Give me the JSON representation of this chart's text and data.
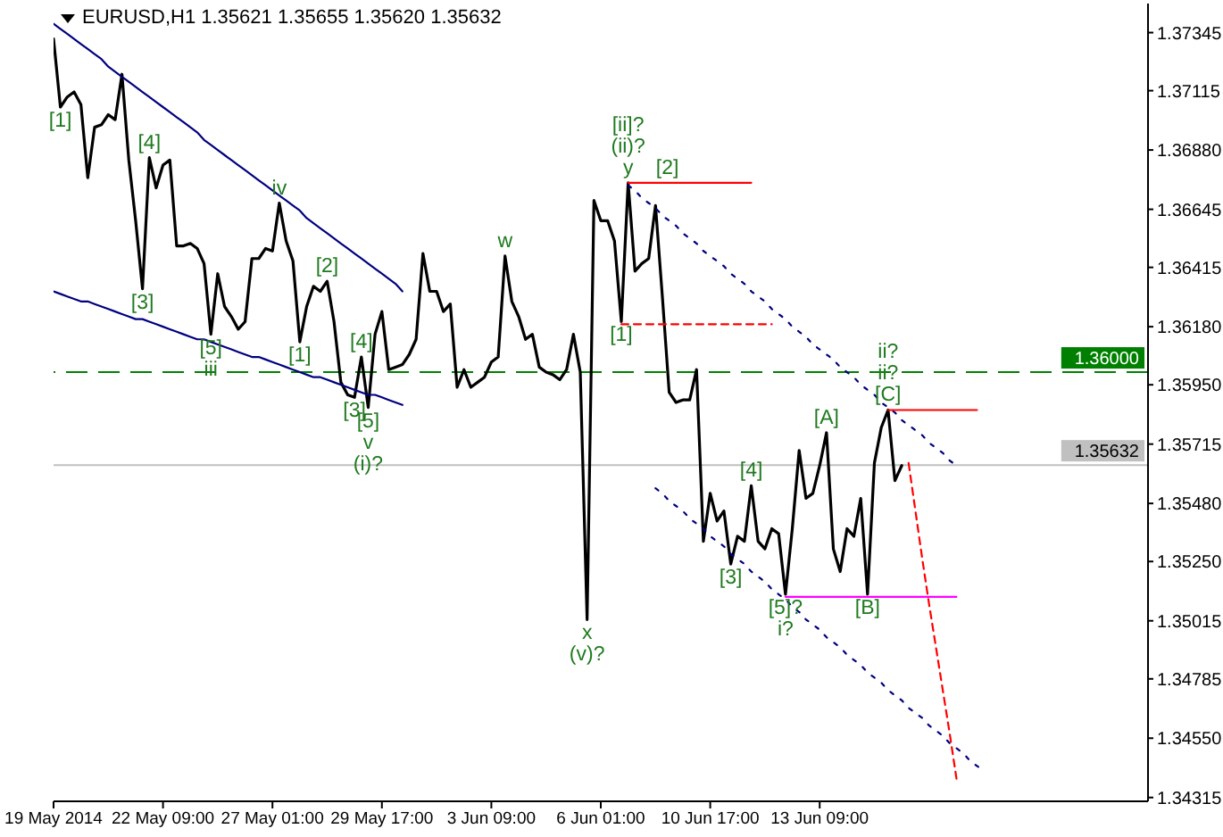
{
  "chart_data": {
    "type": "line",
    "title": "EURUSD,H1 1.35621 1.35655 1.35620 1.35632",
    "categories": [
      "19 May 2014",
      null,
      null,
      null,
      null,
      null,
      null,
      null,
      null,
      null,
      null,
      null,
      null,
      null,
      null,
      null,
      "22 May 09:00",
      null,
      null,
      null,
      null,
      null,
      null,
      null,
      null,
      null,
      null,
      null,
      null,
      null,
      null,
      null,
      "27 May 01:00",
      null,
      null,
      null,
      null,
      null,
      null,
      null,
      null,
      null,
      null,
      null,
      null,
      null,
      null,
      null,
      "29 May 17:00",
      null,
      null,
      null,
      null,
      null,
      null,
      null,
      null,
      null,
      null,
      null,
      null,
      null,
      null,
      null,
      "3 Jun 09:00",
      null,
      null,
      null,
      null,
      null,
      null,
      null,
      null,
      null,
      null,
      null,
      null,
      null,
      null,
      null,
      "6 Jun 01:00",
      null,
      null,
      null,
      null,
      null,
      null,
      null,
      null,
      null,
      null,
      null,
      null,
      null,
      null,
      null,
      "10 Jun 17:00",
      null,
      null,
      null,
      null,
      null,
      null,
      null,
      null,
      null,
      null,
      null,
      null,
      null,
      null,
      null,
      "13 Jun 09:00",
      null,
      null,
      null,
      null,
      null,
      null,
      null,
      null,
      null,
      null,
      null,
      null,
      null,
      null,
      null,
      null,
      null,
      null,
      null,
      null,
      null,
      null,
      null,
      null,
      null,
      null,
      null,
      null,
      null,
      null,
      null,
      null,
      null,
      null,
      null,
      null,
      null,
      null,
      null,
      null,
      null,
      null,
      null,
      null,
      null,
      null,
      null,
      null
    ],
    "ylim": [
      1.343,
      1.3746
    ],
    "yticks": [
      1.37345,
      1.37115,
      {
        "value": 1.3688,
        "label": "1.36880"
      },
      1.36645,
      1.36415,
      {
        "value": 1.3618,
        "label": "1.36180"
      },
      {
        "value": 1.3595,
        "label": "1.35950"
      },
      1.35715,
      {
        "value": 1.3548,
        "label": "1.35480"
      },
      {
        "value": 1.3525,
        "label": "1.35250"
      },
      1.35015,
      1.34785,
      {
        "value": 1.3455,
        "label": "1.34550"
      },
      1.34315
    ],
    "series": [
      {
        "color": "#000000",
        "values": [
          1.3732,
          1.3705,
          1.3709,
          1.3711,
          1.3706,
          1.3677,
          1.3697,
          1.3698,
          1.3702,
          1.37,
          1.3718,
          1.3684,
          1.366,
          1.3633,
          1.3685,
          1.3673,
          1.3682,
          1.3684,
          1.365,
          1.365,
          1.3651,
          1.3649,
          1.3643,
          1.3615,
          1.3639,
          1.3626,
          1.3622,
          1.3617,
          1.362,
          1.3645,
          1.3645,
          1.3649,
          1.3648,
          1.3667,
          1.3652,
          1.3644,
          1.3612,
          1.3626,
          1.3634,
          1.3632,
          1.3636,
          1.362,
          1.3596,
          1.3591,
          1.359,
          1.3606,
          1.3586,
          1.3615,
          1.3624,
          1.3601,
          1.3602,
          1.3603,
          1.3607,
          1.3613,
          1.3647,
          1.3632,
          1.3632,
          1.3624,
          1.3627,
          1.3594,
          1.3601,
          1.3594,
          1.3596,
          1.3598,
          1.3604,
          1.3606,
          1.3646,
          1.3628,
          1.3622,
          1.3613,
          1.3615,
          1.3602,
          1.36,
          1.3599,
          1.3597,
          1.3601,
          1.3615,
          1.36,
          1.3502,
          1.3668,
          1.366,
          1.366,
          1.3652,
          1.362,
          1.3675,
          1.364,
          1.3643,
          1.3645,
          1.3666,
          1.363,
          1.3592,
          1.3588,
          1.3589,
          1.3589,
          1.3601,
          1.3533,
          1.3552,
          1.3541,
          1.3545,
          1.3524,
          1.3535,
          1.3533,
          1.3555,
          1.3533,
          1.353,
          1.3538,
          1.3536,
          1.3512,
          1.3538,
          1.3569,
          1.355,
          1.3552,
          1.3563,
          1.3576,
          1.353,
          1.3521,
          1.3538,
          1.3535,
          1.355,
          1.3512,
          1.3564,
          1.3578,
          1.3585,
          1.3557,
          1.3563,
          null,
          null,
          null,
          null,
          null,
          null,
          null,
          null,
          null,
          null,
          null,
          null,
          null,
          null,
          null,
          null,
          null,
          null,
          null,
          null,
          null,
          null,
          null,
          null,
          null,
          null,
          null,
          null,
          null,
          null,
          null,
          null,
          null,
          null,
          null,
          null
        ]
      },
      {
        "type": "line",
        "color": "#000080",
        "values": [
          1.3738,
          1.3736,
          1.3734,
          1.3732,
          1.373,
          1.3728,
          1.3726,
          1.3724,
          1.3721,
          1.3719,
          1.3717,
          1.3715,
          1.3713,
          1.3711,
          1.3709,
          1.3707,
          1.3705,
          1.3703,
          1.3701,
          1.3699,
          1.3697,
          1.3695,
          1.3692,
          1.369,
          1.3688,
          1.3686,
          1.3684,
          1.3682,
          1.368,
          1.3678,
          1.3676,
          1.3674,
          1.3672,
          1.367,
          1.3668,
          1.3666,
          1.3664,
          1.3661,
          1.3659,
          1.3657,
          1.3655,
          1.3653,
          1.3651,
          1.3649,
          1.3647,
          1.3645,
          1.3643,
          1.3641,
          1.3639,
          1.3637,
          1.3635,
          1.3632,
          null,
          null,
          null,
          null,
          null,
          null,
          null,
          null,
          null,
          null,
          null,
          null,
          null,
          null,
          null,
          null,
          null,
          null,
          null,
          null,
          null,
          null,
          null,
          null,
          null,
          null,
          null,
          null,
          null,
          null,
          null,
          null,
          null,
          null,
          null,
          null,
          null,
          null,
          null,
          null,
          null,
          null,
          null,
          null,
          null,
          null,
          null,
          null,
          null,
          null,
          null,
          null,
          null,
          null,
          null,
          null,
          null,
          null,
          null,
          null,
          null,
          null,
          null,
          null,
          null,
          null,
          null,
          null,
          null,
          null,
          null,
          null,
          null,
          null,
          null,
          null,
          null,
          null,
          null,
          null,
          null,
          null,
          null,
          null,
          null,
          null,
          null,
          null,
          null,
          null,
          null,
          null,
          null,
          null,
          null,
          null,
          null,
          null,
          null,
          null,
          null,
          null,
          null,
          null,
          null,
          null,
          null,
          null,
          null
        ]
      },
      {
        "type": "line",
        "color": "#000080",
        "values": [
          1.3632,
          1.3631,
          1.363,
          1.3629,
          1.3628,
          1.3628,
          1.3627,
          1.3626,
          1.3625,
          1.3624,
          1.3623,
          1.3622,
          1.3621,
          1.3621,
          1.362,
          1.3619,
          1.3618,
          1.3617,
          1.3616,
          1.3615,
          1.3614,
          1.3613,
          1.3613,
          1.3612,
          1.3611,
          1.361,
          1.3609,
          1.3608,
          1.3607,
          1.3606,
          1.3606,
          1.3605,
          1.3604,
          1.3603,
          1.3602,
          1.3601,
          1.36,
          1.3599,
          1.3598,
          1.3598,
          1.3597,
          1.3596,
          1.3595,
          1.3594,
          1.3593,
          1.3592,
          1.3591,
          1.3591,
          1.359,
          1.3589,
          1.3588,
          1.3587,
          null,
          null,
          null,
          null,
          null,
          null,
          null,
          null,
          null,
          null,
          null,
          null,
          null,
          null,
          null,
          null,
          null,
          null,
          null,
          null,
          null,
          null,
          null,
          null,
          null,
          null,
          null,
          null,
          null,
          null,
          null,
          null,
          null,
          null,
          null,
          null,
          null,
          null,
          null,
          null,
          null,
          null,
          null,
          null,
          null,
          null,
          null,
          null,
          null,
          null,
          null,
          null,
          null,
          null,
          null,
          null,
          null,
          null,
          null,
          null,
          null,
          null,
          null,
          null,
          null,
          null,
          null,
          null,
          null,
          null,
          null,
          null,
          null,
          null,
          null,
          null,
          null,
          null,
          null,
          null,
          null,
          null,
          null,
          null,
          null,
          null,
          null,
          null,
          null,
          null,
          null,
          null,
          null,
          null,
          null,
          null,
          null,
          null,
          null,
          null,
          null,
          null,
          null,
          null,
          null,
          null,
          null,
          null,
          null
        ]
      },
      {
        "type": "line",
        "color": "#000080",
        "line_style": "dotted",
        "values": [
          null,
          null,
          null,
          null,
          null,
          null,
          null,
          null,
          null,
          null,
          null,
          null,
          null,
          null,
          null,
          null,
          null,
          null,
          null,
          null,
          null,
          null,
          null,
          null,
          null,
          null,
          null,
          null,
          null,
          null,
          null,
          null,
          null,
          null,
          null,
          null,
          null,
          null,
          null,
          null,
          null,
          null,
          null,
          null,
          null,
          null,
          null,
          null,
          null,
          null,
          null,
          null,
          null,
          null,
          null,
          null,
          null,
          null,
          null,
          null,
          null,
          null,
          null,
          null,
          null,
          null,
          null,
          null,
          null,
          null,
          null,
          null,
          null,
          null,
          null,
          null,
          null,
          null,
          null,
          null,
          null,
          null,
          null,
          null,
          1.3674,
          1.3672,
          1.3669,
          1.3667,
          1.3665,
          1.3662,
          1.366,
          1.3658,
          1.3655,
          1.3653,
          1.3651,
          1.3648,
          1.3646,
          1.3644,
          1.3642,
          1.3639,
          1.3637,
          1.3635,
          1.3632,
          1.363,
          1.3628,
          1.3625,
          1.3623,
          1.3621,
          1.3618,
          1.3616,
          1.3614,
          1.3611,
          1.3609,
          1.3607,
          1.3605,
          1.3602,
          1.36,
          1.3598,
          1.3595,
          1.3593,
          1.3591,
          1.3588,
          1.3586,
          1.3584,
          1.3581,
          1.3579,
          1.3577,
          1.3575,
          1.3572,
          1.357,
          1.3568,
          1.3565,
          1.3563,
          null,
          null,
          null,
          null,
          null,
          null,
          null,
          null,
          null,
          null,
          null,
          null,
          null,
          null,
          null,
          null,
          null,
          null,
          null,
          null,
          null,
          null,
          null,
          null,
          null,
          null,
          null,
          null
        ]
      },
      {
        "type": "line",
        "color": "#000080",
        "line_style": "dotted",
        "values": [
          null,
          null,
          null,
          null,
          null,
          null,
          null,
          null,
          null,
          null,
          null,
          null,
          null,
          null,
          null,
          null,
          null,
          null,
          null,
          null,
          null,
          null,
          null,
          null,
          null,
          null,
          null,
          null,
          null,
          null,
          null,
          null,
          null,
          null,
          null,
          null,
          null,
          null,
          null,
          null,
          null,
          null,
          null,
          null,
          null,
          null,
          null,
          null,
          null,
          null,
          null,
          null,
          null,
          null,
          null,
          null,
          null,
          null,
          null,
          null,
          null,
          null,
          null,
          null,
          null,
          null,
          null,
          null,
          null,
          null,
          null,
          null,
          null,
          null,
          null,
          null,
          null,
          null,
          null,
          null,
          null,
          null,
          null,
          null,
          null,
          null,
          null,
          null,
          1.3554,
          1.3552,
          1.3549,
          1.3547,
          1.3545,
          1.3542,
          1.354,
          1.3538,
          1.3535,
          1.3533,
          1.3531,
          1.3528,
          1.3526,
          1.3524,
          1.3521,
          1.3519,
          1.3517,
          1.3514,
          1.3512,
          1.351,
          1.3507,
          1.3505,
          1.3502,
          1.35,
          1.3498,
          1.3495,
          1.3493,
          1.3491,
          1.3488,
          1.3486,
          1.3484,
          1.3481,
          1.3479,
          1.3477,
          1.3474,
          1.3472,
          1.347,
          1.3467,
          1.3465,
          1.3463,
          1.346,
          1.3458,
          1.3456,
          1.3453,
          1.3451,
          1.3449,
          1.3446,
          1.3444,
          1.3442,
          null,
          null,
          null,
          null,
          null,
          null,
          null,
          null,
          null,
          null,
          null,
          null,
          null,
          null,
          null,
          null,
          null,
          null,
          null,
          null,
          null,
          null,
          null,
          null
        ]
      },
      {
        "type": "line",
        "color": "#ff0000",
        "values": [
          null,
          null,
          null,
          null,
          null,
          null,
          null,
          null,
          null,
          null,
          null,
          null,
          null,
          null,
          null,
          null,
          null,
          null,
          null,
          null,
          null,
          null,
          null,
          null,
          null,
          null,
          null,
          null,
          null,
          null,
          null,
          null,
          null,
          null,
          null,
          null,
          null,
          null,
          null,
          null,
          null,
          null,
          null,
          null,
          null,
          null,
          null,
          null,
          null,
          null,
          null,
          null,
          null,
          null,
          null,
          null,
          null,
          null,
          null,
          null,
          null,
          null,
          null,
          null,
          null,
          null,
          null,
          null,
          null,
          null,
          null,
          null,
          null,
          null,
          null,
          null,
          null,
          null,
          null,
          null,
          null,
          null,
          null,
          null,
          1.3675,
          1.3675,
          1.3675,
          1.3675,
          1.3675,
          1.3675,
          1.3675,
          1.3675,
          1.3675,
          1.3675,
          1.3675,
          1.3675,
          1.3675,
          1.3675,
          1.3675,
          1.3675,
          1.3675,
          1.3675,
          1.3675,
          null,
          null,
          null,
          null,
          null,
          null,
          null,
          null,
          null,
          null,
          null,
          null,
          null,
          null,
          null,
          null,
          null,
          null,
          null,
          null,
          null,
          null,
          null,
          null,
          null,
          null,
          null,
          null,
          null,
          null,
          null,
          null,
          null,
          null,
          null,
          null,
          null,
          null,
          null,
          null,
          null,
          null,
          null,
          null,
          null,
          null,
          null,
          null,
          null,
          null,
          null,
          null,
          null,
          null,
          null,
          null,
          null,
          null
        ]
      },
      {
        "type": "line",
        "color": "#ff0000",
        "line_style": "dashed",
        "values": [
          null,
          null,
          null,
          null,
          null,
          null,
          null,
          null,
          null,
          null,
          null,
          null,
          null,
          null,
          null,
          null,
          null,
          null,
          null,
          null,
          null,
          null,
          null,
          null,
          null,
          null,
          null,
          null,
          null,
          null,
          null,
          null,
          null,
          null,
          null,
          null,
          null,
          null,
          null,
          null,
          null,
          null,
          null,
          null,
          null,
          null,
          null,
          null,
          null,
          null,
          null,
          null,
          null,
          null,
          null,
          null,
          null,
          null,
          null,
          null,
          null,
          null,
          null,
          null,
          null,
          null,
          null,
          null,
          null,
          null,
          null,
          null,
          null,
          null,
          null,
          null,
          null,
          null,
          null,
          null,
          null,
          null,
          null,
          1.3619,
          1.3619,
          1.3619,
          1.3619,
          1.3619,
          1.3619,
          1.3619,
          1.3619,
          1.3619,
          1.3619,
          1.3619,
          1.3619,
          1.3619,
          1.3619,
          1.3619,
          1.3619,
          1.3619,
          1.3619,
          1.3619,
          1.3619,
          1.3619,
          1.3619,
          1.3619,
          null,
          null,
          null,
          null,
          null,
          null,
          null,
          null,
          null,
          null,
          null,
          null,
          null,
          null,
          null,
          null,
          null,
          null,
          null,
          null,
          null,
          null,
          null,
          null,
          null,
          null,
          null,
          null,
          null,
          null,
          null,
          null,
          null,
          null,
          null,
          null,
          null,
          null,
          null,
          null,
          null,
          null,
          null,
          null,
          null,
          null,
          null,
          null,
          null,
          null,
          null,
          null,
          null,
          null,
          null
        ]
      },
      {
        "type": "line",
        "color": "#ff0000",
        "values": [
          null,
          null,
          null,
          null,
          null,
          null,
          null,
          null,
          null,
          null,
          null,
          null,
          null,
          null,
          null,
          null,
          null,
          null,
          null,
          null,
          null,
          null,
          null,
          null,
          null,
          null,
          null,
          null,
          null,
          null,
          null,
          null,
          null,
          null,
          null,
          null,
          null,
          null,
          null,
          null,
          null,
          null,
          null,
          null,
          null,
          null,
          null,
          null,
          null,
          null,
          null,
          null,
          null,
          null,
          null,
          null,
          null,
          null,
          null,
          null,
          null,
          null,
          null,
          null,
          null,
          null,
          null,
          null,
          null,
          null,
          null,
          null,
          null,
          null,
          null,
          null,
          null,
          null,
          null,
          null,
          null,
          null,
          null,
          null,
          null,
          null,
          null,
          null,
          null,
          null,
          null,
          null,
          null,
          null,
          null,
          null,
          null,
          null,
          null,
          null,
          null,
          null,
          null,
          null,
          null,
          null,
          null,
          null,
          null,
          null,
          null,
          null,
          null,
          null,
          null,
          null,
          null,
          null,
          null,
          null,
          null,
          null,
          1.3585,
          1.3585,
          1.3585,
          1.3585,
          1.3585,
          1.3585,
          1.3585,
          1.3585,
          1.3585,
          1.3585,
          1.3585,
          1.3585,
          1.3585,
          1.3585,
          null,
          null,
          null,
          null,
          null,
          null,
          null,
          null,
          null,
          null,
          null,
          null,
          null,
          null,
          null,
          null,
          null,
          null,
          null,
          null,
          null,
          null,
          null,
          null,
          null
        ]
      },
      {
        "type": "line",
        "color": "#ff00ff",
        "values": [
          null,
          null,
          null,
          null,
          null,
          null,
          null,
          null,
          null,
          null,
          null,
          null,
          null,
          null,
          null,
          null,
          null,
          null,
          null,
          null,
          null,
          null,
          null,
          null,
          null,
          null,
          null,
          null,
          null,
          null,
          null,
          null,
          null,
          null,
          null,
          null,
          null,
          null,
          null,
          null,
          null,
          null,
          null,
          null,
          null,
          null,
          null,
          null,
          null,
          null,
          null,
          null,
          null,
          null,
          null,
          null,
          null,
          null,
          null,
          null,
          null,
          null,
          null,
          null,
          null,
          null,
          null,
          null,
          null,
          null,
          null,
          null,
          null,
          null,
          null,
          null,
          null,
          null,
          null,
          null,
          null,
          null,
          null,
          null,
          null,
          null,
          null,
          null,
          null,
          null,
          null,
          null,
          null,
          null,
          null,
          null,
          null,
          null,
          null,
          null,
          null,
          null,
          null,
          null,
          null,
          null,
          null,
          1.3511,
          1.3511,
          1.3511,
          1.3511,
          1.3511,
          1.3511,
          1.3511,
          1.3511,
          1.3511,
          1.3511,
          1.3511,
          1.3511,
          1.3511,
          1.3511,
          1.3511,
          1.3511,
          1.3511,
          1.3511,
          1.3511,
          1.3511,
          1.3511,
          1.3511,
          1.3511,
          1.3511,
          1.3511,
          1.3511,
          null,
          null,
          null,
          null,
          null,
          null,
          null,
          null,
          null,
          null,
          null,
          null,
          null,
          null,
          null,
          null,
          null,
          null,
          null,
          null,
          null,
          null,
          null,
          null,
          null,
          null,
          null,
          null
        ]
      },
      {
        "type": "line",
        "color": "#ff0000",
        "line_style": "dashed",
        "values": [
          null,
          null,
          null,
          null,
          null,
          null,
          null,
          null,
          null,
          null,
          null,
          null,
          null,
          null,
          null,
          null,
          null,
          null,
          null,
          null,
          null,
          null,
          null,
          null,
          null,
          null,
          null,
          null,
          null,
          null,
          null,
          null,
          null,
          null,
          null,
          null,
          null,
          null,
          null,
          null,
          null,
          null,
          null,
          null,
          null,
          null,
          null,
          null,
          null,
          null,
          null,
          null,
          null,
          null,
          null,
          null,
          null,
          null,
          null,
          null,
          null,
          null,
          null,
          null,
          null,
          null,
          null,
          null,
          null,
          null,
          null,
          null,
          null,
          null,
          null,
          null,
          null,
          null,
          null,
          null,
          null,
          null,
          null,
          null,
          null,
          null,
          null,
          null,
          null,
          null,
          null,
          null,
          null,
          null,
          null,
          null,
          null,
          null,
          null,
          null,
          null,
          null,
          null,
          null,
          null,
          null,
          null,
          null,
          null,
          null,
          null,
          null,
          null,
          null,
          null,
          null,
          null,
          null,
          null,
          null,
          null,
          null,
          null,
          null,
          null,
          1.3564,
          1.3545,
          1.3526,
          1.3508,
          1.3491,
          1.3474,
          1.3457,
          1.3439,
          null,
          null,
          null,
          null,
          null,
          null,
          null,
          null,
          null,
          null,
          null,
          null,
          null,
          null,
          null,
          null,
          null,
          null,
          null,
          null,
          null,
          null,
          null,
          null,
          null,
          null,
          null,
          null
        ]
      }
    ],
    "ref_lines": [
      {
        "axis": "y",
        "value": 1.36,
        "label": "1.36000",
        "color": "#008000",
        "line_style": "dashed"
      },
      {
        "axis": "y",
        "value": 1.35632,
        "label": "1.35632",
        "color": "#c0c0c0"
      }
    ],
    "annotations": [
      {
        "text": "[1]",
        "y": 1.3705
      },
      {
        "text": "[3]",
        "y": 1.3633
      },
      {
        "text": "[4]",
        "y": 1.3685
      },
      {
        "text": "[5]",
        "y": 1.3615
      },
      {
        "text": "iii",
        "y": 1.3615
      },
      {
        "text": "iv",
        "y": 1.3667
      },
      {
        "text": "[1]",
        "y": 1.3612
      },
      {
        "text": "[2]",
        "y": 1.3636
      },
      {
        "text": "[3]",
        "y": 1.359
      },
      {
        "text": "[4]",
        "y": 1.3606
      },
      {
        "text": "[5]",
        "y": 1.3586
      },
      {
        "text": "v",
        "y": 1.3586
      },
      {
        "text": "(i)?",
        "y": 1.3586
      },
      {
        "text": "w",
        "y": 1.3646
      },
      {
        "text": "x",
        "y": 1.3502
      },
      {
        "text": "(v)?",
        "y": 1.3502
      },
      {
        "text": "[1]",
        "y": 1.362
      },
      {
        "text": "y",
        "y": 1.3675
      },
      {
        "text": "(ii)?",
        "y": 1.3675
      },
      {
        "text": "[ii]?",
        "y": 1.3675
      },
      {
        "text": "[2]",
        "y": 1.3675
      },
      {
        "text": "[3]",
        "y": 1.3524
      },
      {
        "text": "[4]",
        "y": 1.3555
      },
      {
        "text": "[5]?",
        "y": 1.3512
      },
      {
        "text": "i?",
        "y": 1.3512
      },
      {
        "text": "[A]",
        "y": 1.3576
      },
      {
        "text": "[B]",
        "y": 1.3512
      },
      {
        "text": "[C]",
        "y": 1.3585
      },
      {
        "text": "ii?",
        "y": 1.3585
      },
      {
        "text": "ii?",
        "y": 1.3585
      }
    ]
  }
}
